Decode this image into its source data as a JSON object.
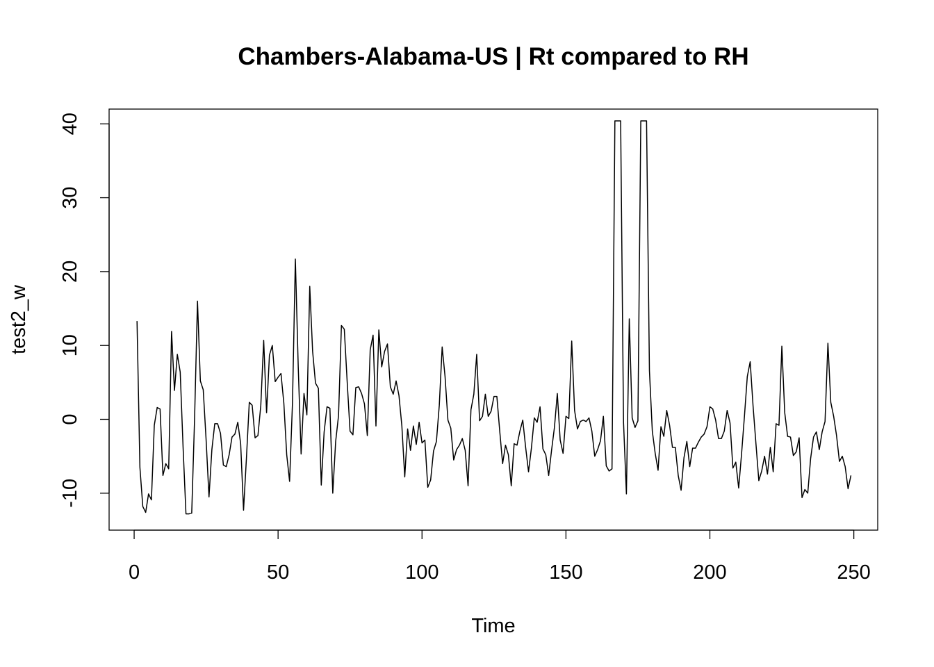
{
  "chart_data": {
    "type": "line",
    "title": "Chambers-Alabama-US | Rt compared to RH",
    "xlabel": "Time",
    "ylabel": "test2_w",
    "xlim": [
      -8.7,
      258.3
    ],
    "ylim": [
      -15,
      42
    ],
    "x_ticks": [
      0,
      50,
      100,
      150,
      200,
      250
    ],
    "y_ticks": [
      -10,
      0,
      10,
      20,
      30,
      40
    ],
    "x_tick_labels": [
      "0",
      "50",
      "100",
      "150",
      "200",
      "250"
    ],
    "y_tick_labels": [
      "-10",
      "0",
      "10",
      "20",
      "30",
      "40"
    ],
    "series": [
      {
        "color": "#000000",
        "x_start": 1,
        "x_step": 1,
        "values": [
          13.3,
          -6.5,
          -11.8,
          -12.6,
          -10.1,
          -10.9,
          -0.8,
          1.6,
          1.4,
          -7.6,
          -6,
          -6.7,
          11.9,
          3.9,
          8.8,
          6.4,
          -3.8,
          -12.8,
          -12.8,
          -12.7,
          0.2,
          16,
          5.2,
          4,
          -2.8,
          -10.5,
          -4.1,
          -0.6,
          -0.6,
          -1.9,
          -6.2,
          -6.4,
          -4.8,
          -2.4,
          -2,
          -0.4,
          -3.3,
          -12.3,
          -5.3,
          2.3,
          1.9,
          -2.5,
          -2.2,
          1.9,
          10.7,
          0.9,
          8.7,
          10,
          5.1,
          5.7,
          6.2,
          2.2,
          -4.8,
          -8.4,
          2.2,
          21.7,
          7.1,
          -4.7,
          3.5,
          0.6,
          18,
          9.2,
          4.9,
          4.2,
          -8.9,
          -1.7,
          1.7,
          1.5,
          -10,
          -3,
          0.5,
          12.7,
          12.2,
          5.1,
          -1.6,
          -2.1,
          4.3,
          4.4,
          3.5,
          2.1,
          -2.2,
          9.4,
          11.4,
          -0.9,
          12.1,
          7.1,
          9.2,
          10.2,
          4.4,
          3.4,
          5.2,
          3.2,
          -0.9,
          -7.8,
          -1.3,
          -4.2,
          -0.9,
          -3.4,
          -0.4,
          -3.2,
          -2.8,
          -9.2,
          -8.2,
          -4.3,
          -3,
          1.9,
          9.8,
          5.8,
          -0.1,
          -1.2,
          -5.5,
          -4.1,
          -3.5,
          -2.6,
          -4.2,
          -9,
          1.3,
          3.4,
          8.8,
          -0.2,
          0.4,
          3.4,
          0.4,
          1.1,
          3.1,
          3.1,
          -1.6,
          -6,
          -3.5,
          -4.8,
          -9,
          -3.3,
          -3.5,
          -1.6,
          -0.1,
          -3.8,
          -7.1,
          -3.9,
          0.2,
          -0.4,
          1.7,
          -4,
          -4.8,
          -7.6,
          -4.2,
          -1.1,
          3.5,
          -2.8,
          -4.6,
          0.4,
          0.1,
          10.6,
          1.2,
          -1.3,
          -0.3,
          -0.1,
          -0.3,
          0.2,
          -1.6,
          -5,
          -4.1,
          -2.9,
          0.4,
          -6.3,
          -7,
          -6.7,
          40.4,
          40.4,
          40.4,
          -0.4,
          -10.1,
          13.6,
          0.2,
          -1.1,
          -0.2,
          40.4,
          40.4,
          40.4,
          6.6,
          -1.6,
          -4.6,
          -6.9,
          -1,
          -2.3,
          1.2,
          -0.8,
          -3.8,
          -3.8,
          -7.6,
          -9.6,
          -5.2,
          -3,
          -6.4,
          -3.9,
          -3.9,
          -3.1,
          -2.4,
          -2,
          -1,
          1.7,
          1.4,
          -0.1,
          -2.6,
          -2.6,
          -1.6,
          1.2,
          -0.5,
          -6.6,
          -5.8,
          -9.3,
          -4.7,
          0.4,
          5.8,
          7.8,
          1.8,
          -3.3,
          -8.3,
          -7,
          -5,
          -7.4,
          -3.8,
          -7.1,
          -0.6,
          -0.8,
          9.9,
          0.9,
          -2.3,
          -2.4,
          -4.9,
          -4.4,
          -2.5,
          -10.6,
          -9.5,
          -10,
          -5.3,
          -2.4,
          -1.7,
          -4.1,
          -1.7,
          -0.3,
          10.3,
          2.3,
          0.4,
          -2.2,
          -5.7,
          -5,
          -6.4,
          -9.4,
          -7.6
        ]
      }
    ]
  }
}
